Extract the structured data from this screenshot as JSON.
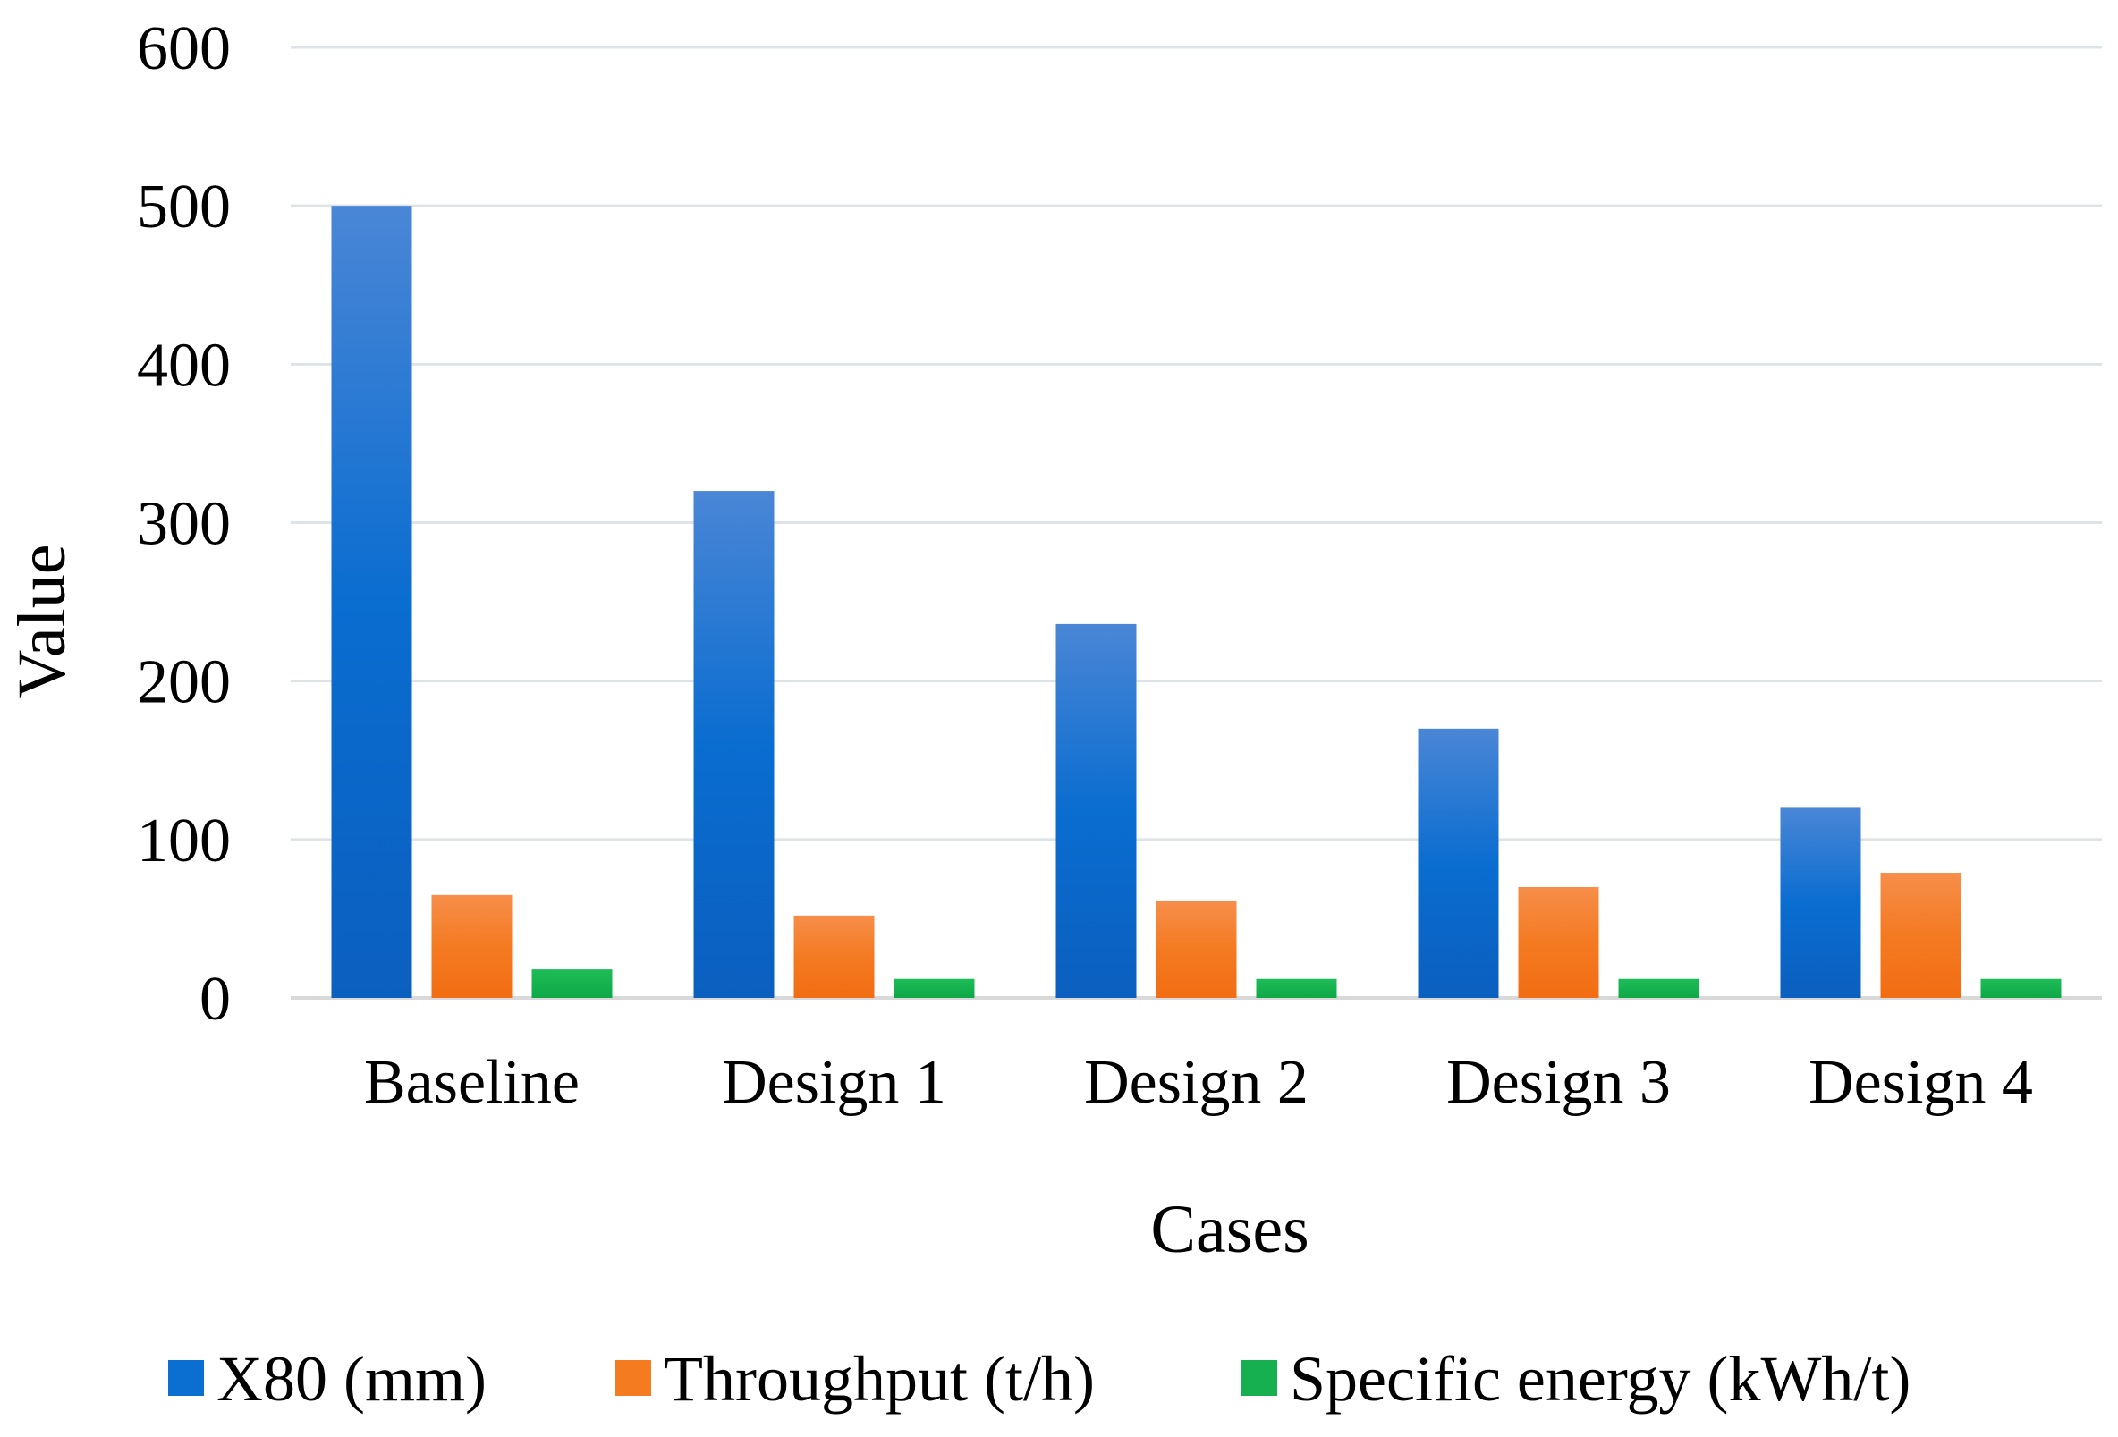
{
  "chart_data": {
    "type": "bar",
    "title": "",
    "xlabel": "Cases",
    "ylabel": "Value",
    "ylim": [
      0,
      600
    ],
    "yticks": [
      0,
      100,
      200,
      300,
      400,
      500,
      600
    ],
    "grid": true,
    "legend_position": "bottom",
    "categories": [
      "Baseline",
      "Design 1",
      "Design 2",
      "Design 3",
      "Design 4"
    ],
    "series": [
      {
        "name": "X80 (mm)",
        "color": "#0b6fd1",
        "values": [
          500,
          320,
          236,
          170,
          120
        ]
      },
      {
        "name": "Throughput (t/h)",
        "color": "#f47b20",
        "values": [
          65,
          52,
          61,
          70,
          79
        ]
      },
      {
        "name": "Specific energy (kWh/t)",
        "color": "#16b050",
        "values": [
          18,
          12,
          12,
          12,
          12
        ]
      }
    ]
  }
}
